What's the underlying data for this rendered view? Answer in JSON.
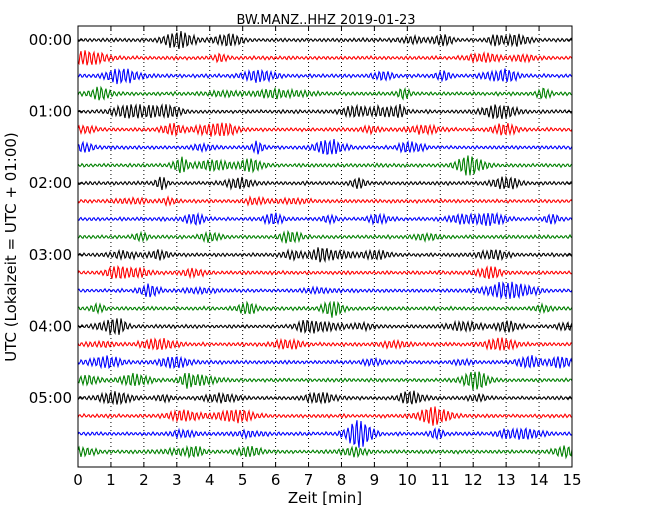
{
  "chart_data": {
    "type": "line",
    "title": "BW.MANZ..HHZ 2019-01-23",
    "xlabel": "Zeit  [min]",
    "ylabel": "UTC (Lokalzeit = UTC + 01:00)",
    "xlim": [
      0,
      15
    ],
    "x_ticks": [
      "0",
      "1",
      "2",
      "3",
      "4",
      "5",
      "6",
      "7",
      "8",
      "9",
      "10",
      "11",
      "12",
      "13",
      "14",
      "15"
    ],
    "y_ticks": [
      "00:00",
      "01:00",
      "02:00",
      "03:00",
      "04:00",
      "05:00"
    ],
    "y_tick_rows": [
      0,
      4,
      8,
      12,
      16,
      20
    ],
    "row_count": 24,
    "row_interval_min": 15,
    "grid": "vertical-dotted",
    "trace_colors": [
      "#000000",
      "#ff0000",
      "#0000ff",
      "#008000"
    ]
  }
}
